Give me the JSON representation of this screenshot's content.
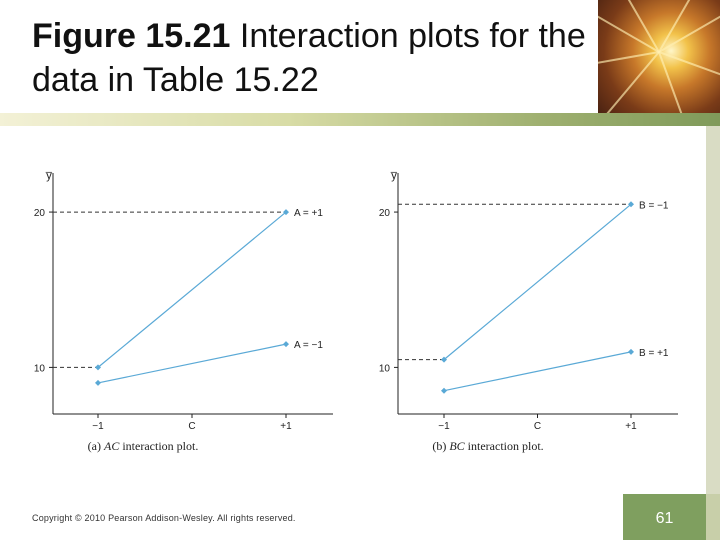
{
  "slide": {
    "title_bold": "Figure 15.21",
    "title_rest": "Interaction plots for the data in Table 15.22",
    "copyright": "Copyright © 2010 Pearson Addison-Wesley. All rights reserved.",
    "page_number": "61"
  },
  "colors": {
    "series": "#5aa9d6",
    "axis": "#222222",
    "page_box": "#7f9f5f"
  },
  "chart_data": [
    {
      "type": "line",
      "caption_prefix": "(a) ",
      "caption_italic": "AC",
      "caption_suffix": " interaction plot.",
      "ylabel": "y̅",
      "categories": [
        "−1",
        "C",
        "+1"
      ],
      "x": [
        -1,
        1
      ],
      "yticks": [
        10,
        20
      ],
      "ylim": [
        7,
        22
      ],
      "series": [
        {
          "name": "A = +1",
          "values": [
            10,
            20
          ]
        },
        {
          "name": "A = −1",
          "values": [
            9,
            11.5
          ]
        }
      ],
      "reference_lines": [
        20,
        10
      ]
    },
    {
      "type": "line",
      "caption_prefix": "(b) ",
      "caption_italic": "BC",
      "caption_suffix": " interaction plot.",
      "ylabel": "y̅",
      "categories": [
        "−1",
        "C",
        "+1"
      ],
      "x": [
        -1,
        1
      ],
      "yticks": [
        10,
        20
      ],
      "ylim": [
        7,
        22
      ],
      "series": [
        {
          "name": "B = −1",
          "values": [
            10.5,
            20.5
          ]
        },
        {
          "name": "B = +1",
          "values": [
            8.5,
            11
          ]
        }
      ],
      "reference_lines": [
        20.5,
        10.5
      ]
    }
  ]
}
